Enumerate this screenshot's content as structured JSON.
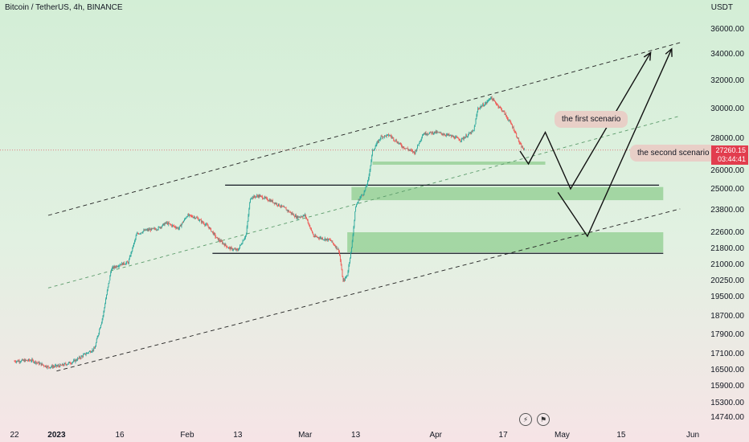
{
  "header": {
    "title": "Bitcoin / TetherUS, 4h, BINANCE"
  },
  "price_axis": {
    "unit": "USDT"
  },
  "last_price": {
    "value": "27260.15",
    "countdown": "03:44:41",
    "color": "#e23d4e"
  },
  "annotations": {
    "first": "the first scenario",
    "second": "the second scenario"
  },
  "colors": {
    "up": "#26a69a",
    "down": "#ef5350",
    "zone": "#8fce8f",
    "line": "#131722"
  },
  "icons": [
    "lightning-icon",
    "flag-icon"
  ],
  "chart_data": {
    "type": "candlestick",
    "title": "Bitcoin / TetherUS, 4h, BINANCE",
    "ylabel": "USDT",
    "y_ticks": [
      14740,
      15300,
      15900,
      16500,
      17100,
      17900,
      18700,
      19500,
      20250,
      21000,
      21800,
      22600,
      23800,
      25000,
      26000,
      28000,
      30000,
      32000,
      34000,
      36000
    ],
    "y_tick_labels": [
      "14740.00",
      "15300.00",
      "15900.00",
      "16500.00",
      "17100.00",
      "17900.00",
      "18700.00",
      "19500.00",
      "20250.00",
      "21000.00",
      "21800.00",
      "22600.00",
      "23800.00",
      "25000.00",
      "26000.00",
      "28000.00",
      "30000.00",
      "32000.00",
      "34000.00",
      "36000.00"
    ],
    "x_ticks": [
      {
        "label": "22",
        "date": "2022-12-22"
      },
      {
        "label": "2023",
        "date": "2023-01-01",
        "bold": true
      },
      {
        "label": "16",
        "date": "2023-01-16"
      },
      {
        "label": "Feb",
        "date": "2023-02-01"
      },
      {
        "label": "13",
        "date": "2023-02-13"
      },
      {
        "label": "Mar",
        "date": "2023-03-01"
      },
      {
        "label": "13",
        "date": "2023-03-13"
      },
      {
        "label": "Apr",
        "date": "2023-04-01"
      },
      {
        "label": "17",
        "date": "2023-04-17"
      },
      {
        "label": "May",
        "date": "2023-05-01"
      },
      {
        "label": "15",
        "date": "2023-05-15"
      },
      {
        "label": "Jun",
        "date": "2023-06-01"
      }
    ],
    "x_range": [
      "2022-12-22",
      "2023-06-01"
    ],
    "price_path": [
      [
        "2022-12-22",
        16820
      ],
      [
        "2022-12-26",
        16850
      ],
      [
        "2022-12-30",
        16600
      ],
      [
        "2023-01-02",
        16650
      ],
      [
        "2023-01-05",
        16800
      ],
      [
        "2023-01-08",
        17100
      ],
      [
        "2023-01-10",
        17300
      ],
      [
        "2023-01-12",
        18700
      ],
      [
        "2023-01-14",
        20800
      ],
      [
        "2023-01-16",
        21000
      ],
      [
        "2023-01-18",
        21100
      ],
      [
        "2023-01-20",
        22500
      ],
      [
        "2023-01-22",
        22700
      ],
      [
        "2023-01-25",
        22800
      ],
      [
        "2023-01-27",
        23100
      ],
      [
        "2023-01-30",
        22800
      ],
      [
        "2023-02-01",
        23500
      ],
      [
        "2023-02-03",
        23400
      ],
      [
        "2023-02-06",
        22900
      ],
      [
        "2023-02-08",
        22300
      ],
      [
        "2023-02-11",
        21800
      ],
      [
        "2023-02-13",
        21700
      ],
      [
        "2023-02-15",
        22500
      ],
      [
        "2023-02-16",
        24500
      ],
      [
        "2023-02-18",
        24600
      ],
      [
        "2023-02-21",
        24300
      ],
      [
        "2023-02-24",
        23900
      ],
      [
        "2023-02-27",
        23400
      ],
      [
        "2023-03-01",
        23500
      ],
      [
        "2023-03-03",
        22400
      ],
      [
        "2023-03-07",
        22200
      ],
      [
        "2023-03-09",
        21700
      ],
      [
        "2023-03-10",
        20200
      ],
      [
        "2023-03-11",
        20500
      ],
      [
        "2023-03-12",
        21800
      ],
      [
        "2023-03-13",
        24000
      ],
      [
        "2023-03-14",
        24500
      ],
      [
        "2023-03-15",
        24800
      ],
      [
        "2023-03-16",
        25500
      ],
      [
        "2023-03-17",
        27200
      ],
      [
        "2023-03-19",
        28100
      ],
      [
        "2023-03-21",
        28200
      ],
      [
        "2023-03-24",
        27500
      ],
      [
        "2023-03-27",
        27100
      ],
      [
        "2023-03-29",
        28300
      ],
      [
        "2023-04-01",
        28400
      ],
      [
        "2023-04-04",
        28200
      ],
      [
        "2023-04-07",
        27900
      ],
      [
        "2023-04-10",
        28500
      ],
      [
        "2023-04-11",
        30000
      ],
      [
        "2023-04-13",
        30400
      ],
      [
        "2023-04-14",
        30800
      ],
      [
        "2023-04-17",
        29800
      ],
      [
        "2023-04-19",
        28900
      ],
      [
        "2023-04-20",
        28300
      ],
      [
        "2023-04-21",
        27600
      ],
      [
        "2023-04-22",
        27260
      ]
    ],
    "horizontal_levels": [
      {
        "price": 25200,
        "from": "2023-02-10",
        "to": "2023-05-24"
      },
      {
        "price": 21550,
        "from": "2023-02-07",
        "to": "2023-05-25"
      }
    ],
    "zones": [
      {
        "from": "2023-03-12",
        "to": "2023-05-25",
        "low": 24350,
        "high": 25100
      },
      {
        "from": "2023-03-11",
        "to": "2023-05-25",
        "low": 21600,
        "high": 22600
      },
      {
        "from": "2023-03-17",
        "to": "2023-04-27",
        "low": 26350,
        "high": 26550
      }
    ],
    "channel_lines": [
      {
        "style": "dashed",
        "from": [
          "2022-12-30",
          23500
        ],
        "to": [
          "2023-05-29",
          34900
        ]
      },
      {
        "style": "dashed-thin",
        "from": [
          "2022-12-30",
          19900
        ],
        "to": [
          "2023-05-29",
          29500
        ]
      },
      {
        "style": "dashed",
        "from": [
          "2023-01-01",
          16450
        ],
        "to": [
          "2023-05-29",
          23850
        ]
      }
    ],
    "scenarios": [
      {
        "name": "the first scenario",
        "path": [
          [
            "2023-04-21",
            27200
          ],
          [
            "2023-04-23",
            26400
          ],
          [
            "2023-04-27",
            28400
          ],
          [
            "2023-05-03",
            25000
          ],
          [
            "2023-05-22",
            34100
          ]
        ]
      },
      {
        "name": "the second scenario",
        "path": [
          [
            "2023-04-30",
            24800
          ],
          [
            "2023-05-07",
            22400
          ],
          [
            "2023-05-27",
            34400
          ]
        ]
      }
    ],
    "last_price": 27260.15
  }
}
